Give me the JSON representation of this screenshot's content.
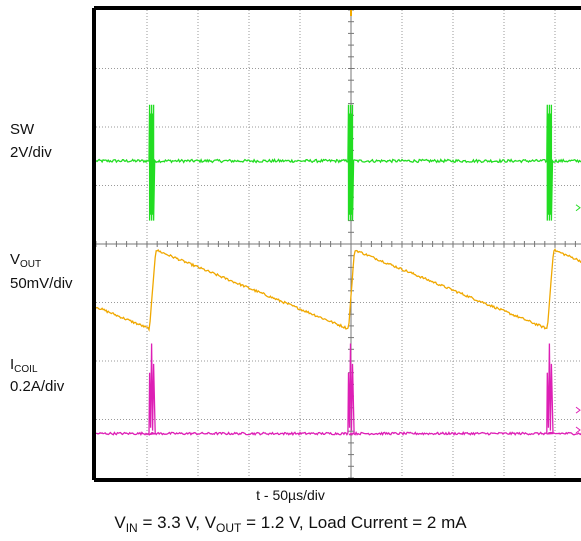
{
  "chart_data": {
    "type": "line",
    "title": "",
    "grid": true,
    "divisions": {
      "x": 10,
      "y": 8
    },
    "x_scale_label": "t - 50µs/div",
    "condition": {
      "vin_symbol": "V",
      "vin_sub": "IN",
      "vin_value": " = 3.3 V, ",
      "vout_symbol": "V",
      "vout_sub": "OUT",
      "vout_value": " = 1.2 V, Load Current = 2 mA"
    },
    "xlim_div": [
      0,
      10
    ],
    "pulse_times_div": [
      1.05,
      4.95,
      8.85
    ],
    "series": [
      {
        "key": "sw",
        "name": "SW",
        "scale": "2V/div",
        "color": "#22dd22",
        "baseline_div": 5.42,
        "spike_top_div": 6.38,
        "spike_bottom_div": 4.4
      },
      {
        "key": "vout",
        "name": "V",
        "name_sub": "OUT",
        "scale": "50mV/div",
        "color": "#f0a800",
        "peak_div": 3.9,
        "trough_div": 2.55,
        "shape": "sawtooth"
      },
      {
        "key": "icoil",
        "name": "I",
        "name_sub": "COIL",
        "scale": "0.2A/div",
        "color": "#dd1fb5",
        "baseline_div": 0.76,
        "spike_top_div": 2.3
      }
    ]
  }
}
